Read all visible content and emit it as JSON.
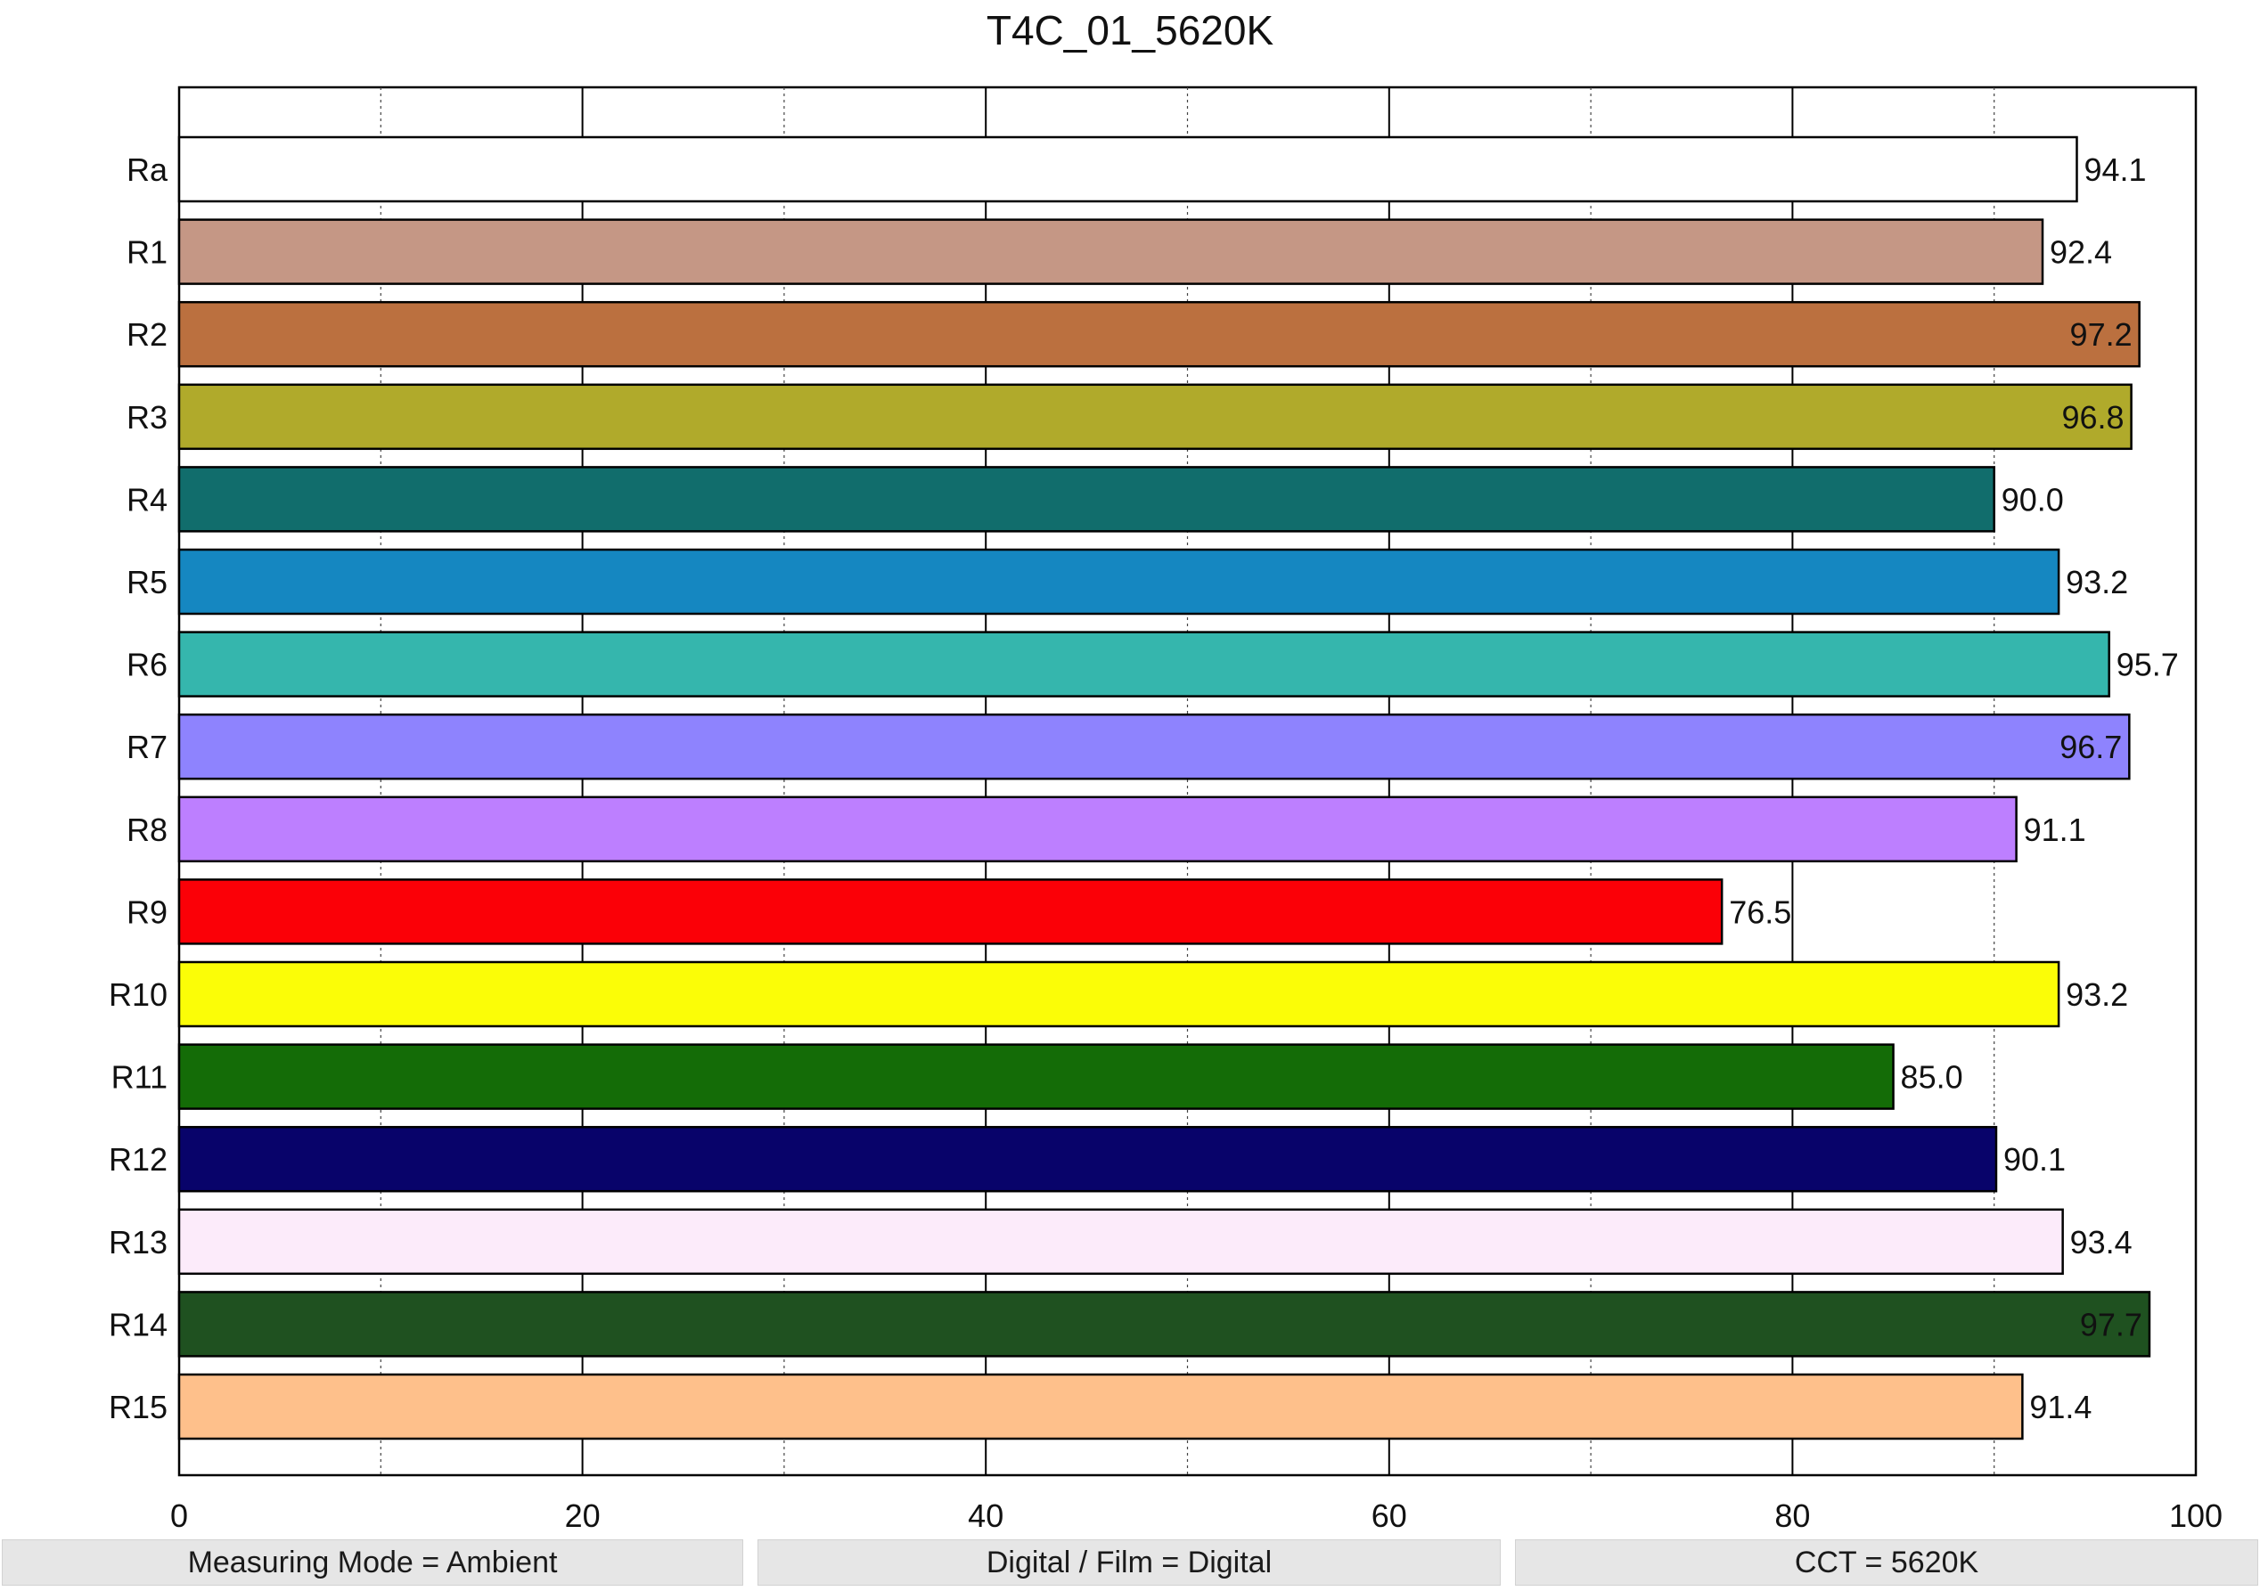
{
  "chart_data": {
    "type": "bar",
    "orientation": "horizontal",
    "title": "T4C_01_5620K",
    "xlabel": "",
    "ylabel": "",
    "xlim": [
      0,
      100
    ],
    "x_ticks": [
      0,
      20,
      40,
      60,
      80,
      100
    ],
    "x_minor_gridlines": [
      10,
      30,
      50,
      70,
      90
    ],
    "grid": true,
    "categories": [
      "Ra",
      "R1",
      "R2",
      "R3",
      "R4",
      "R5",
      "R6",
      "R7",
      "R8",
      "R9",
      "R10",
      "R11",
      "R12",
      "R13",
      "R14",
      "R15"
    ],
    "values": [
      94.1,
      92.4,
      97.2,
      96.8,
      90.0,
      93.2,
      95.7,
      96.7,
      91.1,
      76.5,
      93.2,
      85.0,
      90.1,
      93.4,
      97.7,
      91.4
    ],
    "value_labels": [
      "94.1",
      "92.4",
      "97.2",
      "96.8",
      "90.0",
      "93.2",
      "95.7",
      "96.7",
      "91.1",
      "76.5",
      "93.2",
      "85.0",
      "90.1",
      "93.4",
      "97.7",
      "91.4"
    ],
    "colors": [
      "#ffffff",
      "#c59785",
      "#bb703f",
      "#b0aa2b",
      "#116d6c",
      "#1587c1",
      "#35b6ad",
      "#8e83fe",
      "#bd7fff",
      "#fb0007",
      "#fbfd07",
      "#146c07",
      "#08036a",
      "#fcebfa",
      "#1f5120",
      "#fec08b"
    ]
  },
  "footer": {
    "measuring_mode": "Measuring Mode = Ambient",
    "digital_film": "Digital / Film = Digital",
    "cct": "CCT = 5620K"
  }
}
